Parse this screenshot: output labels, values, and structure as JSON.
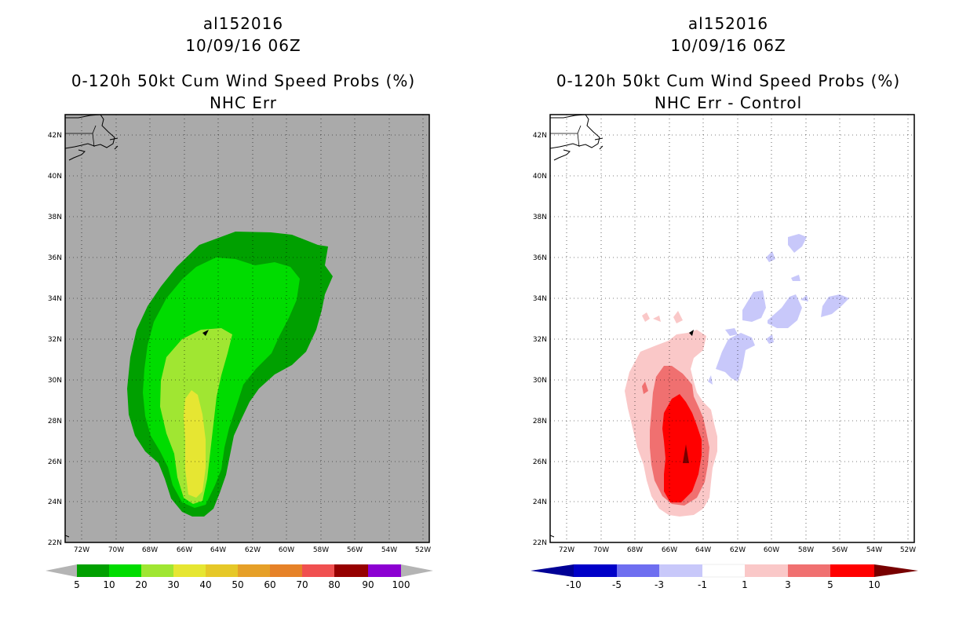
{
  "left_panel": {
    "storm_id": "al152016",
    "datetime": "10/09/16 06Z",
    "title": "0-120h 50kt Cum Wind Speed Probs (%)",
    "subtitle": "NHC Err",
    "background_color": "#aaaaaa",
    "colorbar": {
      "labels": [
        "5",
        "10",
        "20",
        "30",
        "40",
        "50",
        "60",
        "70",
        "80",
        "90",
        "100"
      ],
      "colors": [
        "#00a000",
        "#00dc00",
        "#a0e632",
        "#e6e632",
        "#e6c828",
        "#e6a028",
        "#e68228",
        "#f05050",
        "#960000",
        "#8c00d2"
      ],
      "end_color": "#b4b4b4"
    }
  },
  "right_panel": {
    "storm_id": "al152016",
    "datetime": "10/09/16 06Z",
    "title": "0-120h 50kt Cum Wind Speed Probs (%)",
    "subtitle": "NHC Err - Control",
    "background_color": "#ffffff",
    "colorbar": {
      "labels": [
        "-10",
        "-5",
        "-3",
        "-1",
        "1",
        "3",
        "5",
        "10"
      ],
      "colors": [
        "#0000c8",
        "#6e6ef0",
        "#c8c8fa",
        "#ffffff",
        "#fac8c8",
        "#f07070",
        "#ff0000"
      ],
      "end_left": "#000096",
      "end_right": "#780000"
    }
  },
  "axes": {
    "lat_labels": [
      "42N",
      "40N",
      "38N",
      "36N",
      "34N",
      "32N",
      "30N",
      "28N",
      "26N",
      "24N",
      "22N"
    ],
    "lon_labels": [
      "72W",
      "70W",
      "68W",
      "66W",
      "64W",
      "62W",
      "60W",
      "58W",
      "56W",
      "54W",
      "52W"
    ]
  }
}
